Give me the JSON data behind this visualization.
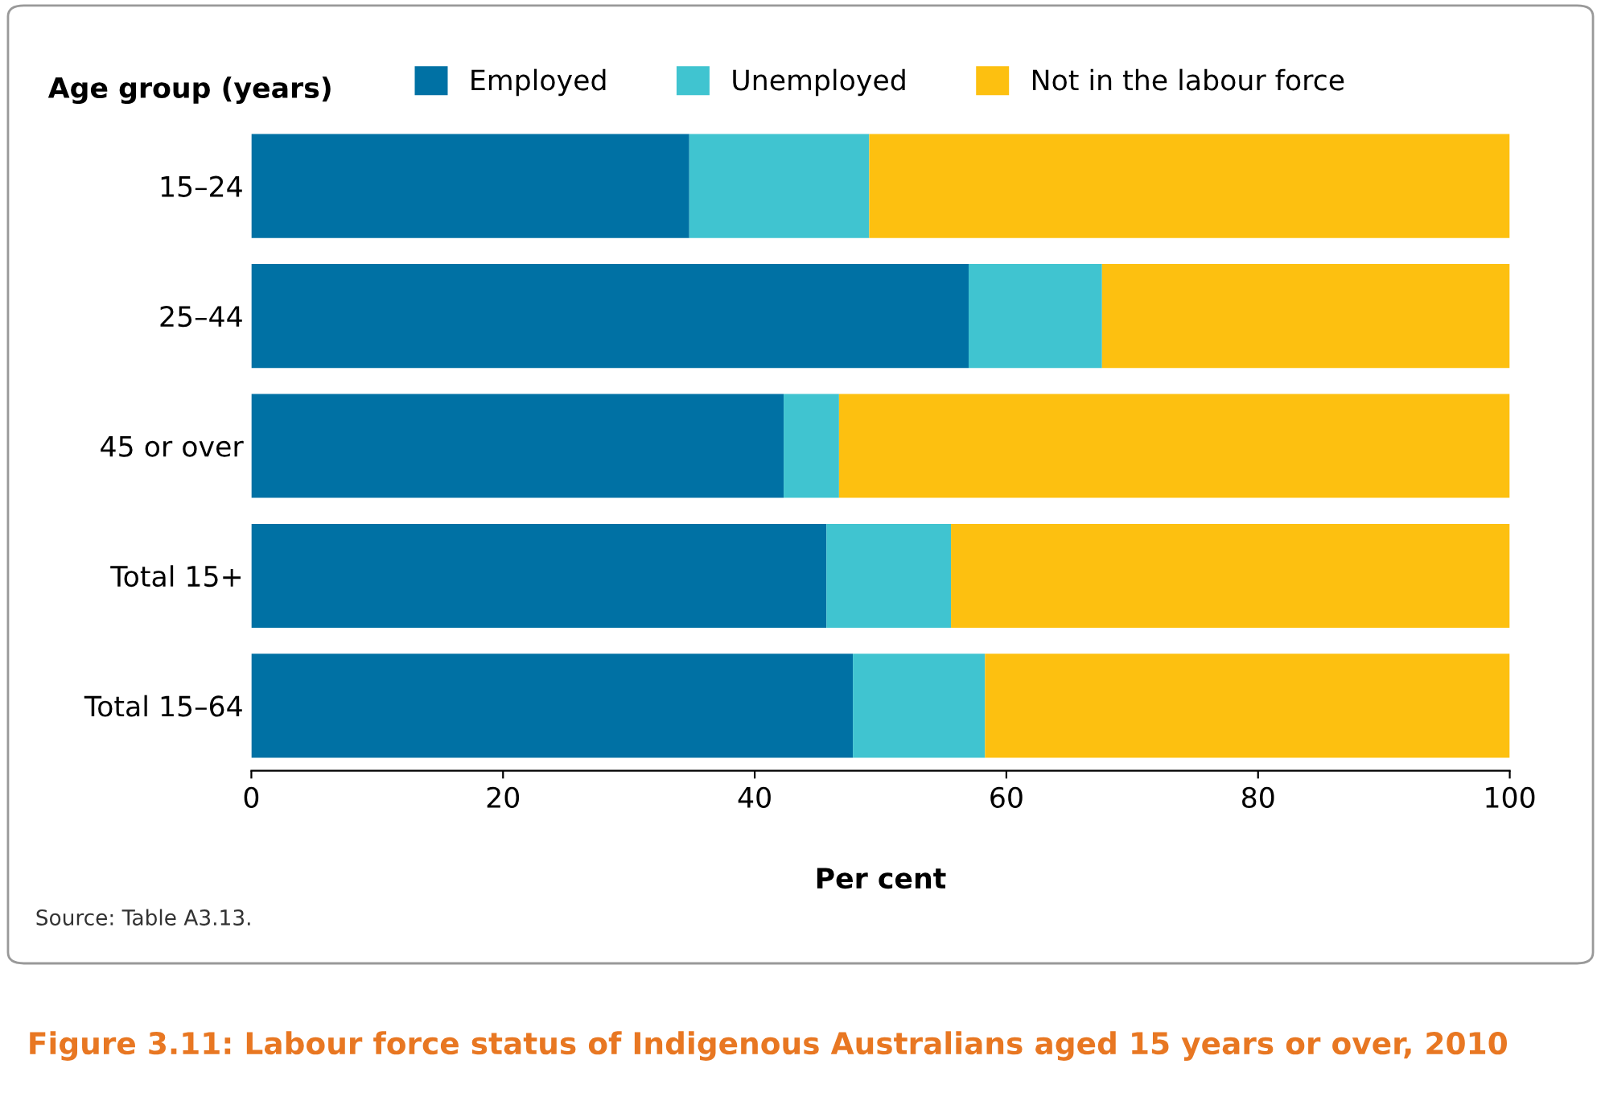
{
  "chart_data": {
    "type": "bar",
    "orientation": "horizontal",
    "stacked": true,
    "title": "Figure 3.11: Labour force status of Indigenous Australians aged 15 years or over, 2010",
    "xlabel": "Per cent",
    "ylabel": "Age group (years)",
    "categories": [
      "15–24",
      "25–44",
      "45 or over",
      "Total 15+",
      "Total 15–64"
    ],
    "series": [
      {
        "name": "Employed",
        "color": "#0071a4",
        "values": [
          34.8,
          57.0,
          42.3,
          45.7,
          47.8
        ]
      },
      {
        "name": "Unemployed",
        "color": "#40c4d0",
        "values": [
          14.3,
          10.6,
          4.4,
          9.9,
          10.5
        ]
      },
      {
        "name": "Not in the labour force",
        "color": "#fdc010",
        "values": [
          50.9,
          32.4,
          53.3,
          44.4,
          41.7
        ]
      }
    ],
    "xlim": [
      0,
      100
    ],
    "xticks": [
      0,
      20,
      40,
      60,
      80,
      100
    ],
    "grid": false,
    "legend": "top",
    "annotations": [
      "Source: Table A3.13."
    ]
  }
}
